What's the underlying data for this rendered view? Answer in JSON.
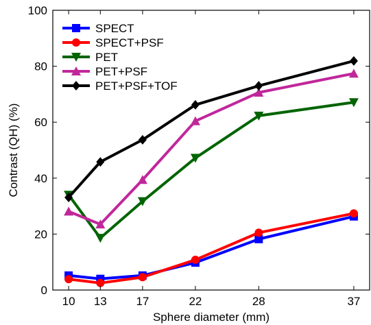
{
  "chart_data": {
    "type": "line",
    "title": "",
    "xlabel": "Sphere diameter (mm)",
    "ylabel": "Contrast (QH) (%)",
    "x": [
      10,
      13,
      17,
      22,
      28,
      37
    ],
    "x_tick_labels": [
      "10",
      "13",
      "17",
      "22",
      "28",
      "37"
    ],
    "xlim": [
      8.5,
      38.5
    ],
    "ylim": [
      0,
      100
    ],
    "y_ticks": [
      0,
      20,
      40,
      60,
      80,
      100
    ],
    "y_tick_labels": [
      "0",
      "20",
      "40",
      "60",
      "80",
      "100"
    ],
    "grid": false,
    "legend_position": "top-left",
    "series": [
      {
        "name": "SPECT",
        "color": "#0000ff",
        "marker": "square",
        "values": [
          5.2,
          4.0,
          5.2,
          9.8,
          18.2,
          26.3
        ]
      },
      {
        "name": "SPECT+PSF",
        "color": "#ff0000",
        "marker": "circle",
        "values": [
          3.9,
          2.5,
          4.6,
          10.8,
          20.5,
          27.4
        ]
      },
      {
        "name": "PET",
        "color": "#006400",
        "marker": "triangle-down",
        "values": [
          34.0,
          18.6,
          31.7,
          47.2,
          62.3,
          67.1
        ]
      },
      {
        "name": "PET+PSF",
        "color": "#c0279b",
        "marker": "triangle-up",
        "values": [
          28.1,
          23.5,
          39.4,
          60.4,
          70.6,
          77.4
        ]
      },
      {
        "name": "PET+PSF+TOF",
        "color": "#000000",
        "marker": "diamond",
        "values": [
          33.1,
          45.8,
          53.7,
          66.2,
          73.0,
          81.9
        ]
      }
    ]
  }
}
